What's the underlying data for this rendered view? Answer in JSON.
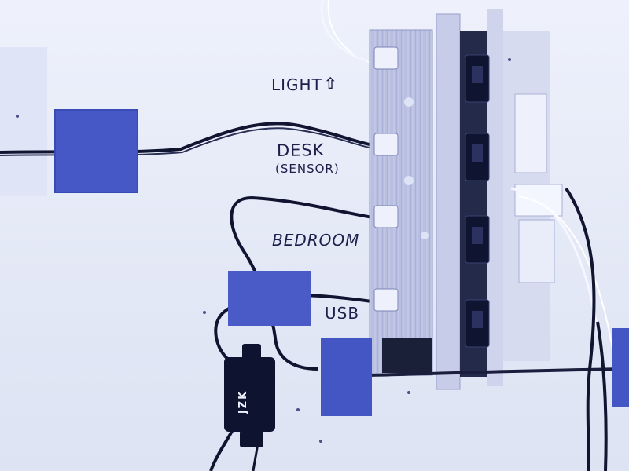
{
  "labels": {
    "light": "LIGHT",
    "light_arrow": "⇧",
    "desk": "DESK",
    "sensor": "(SENSOR)",
    "bedroom": "BEDROOM",
    "usb": "USB"
  },
  "adapter": {
    "brand": "JZK"
  },
  "colors": {
    "wall": "#e6ebf7",
    "tape": "#4a5cc8",
    "panel": "#c9cde6",
    "switch": "#1c2440",
    "ink": "#1b1f4a"
  }
}
